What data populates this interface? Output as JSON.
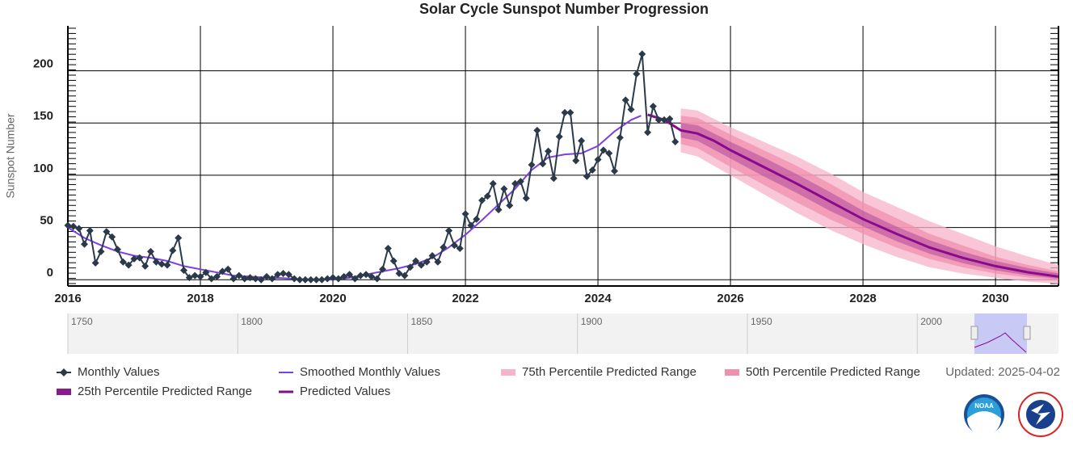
{
  "chart_data": {
    "type": "line",
    "title": "Solar Cycle Sunspot Number Progression",
    "y_label": "Sunspot Number",
    "xlim": [
      2016,
      2030.95
    ],
    "xticks": [
      2016,
      2018,
      2020,
      2022,
      2024,
      2026,
      2028,
      2030
    ],
    "ylim": [
      -6,
      243
    ],
    "yticks": [
      0,
      50,
      100,
      150,
      200
    ],
    "grid": true,
    "legend": "bottom",
    "updated": "Updated: 2025-04-02",
    "navigator_labels": [
      "1750",
      "1800",
      "1850",
      "1900",
      "1950",
      "2000"
    ],
    "series": [
      {
        "name": "Monthly Values",
        "kind": "markers",
        "color": "#2b3a4a",
        "x": [
          2016,
          2016.083,
          2016.167,
          2016.25,
          2016.333,
          2016.417,
          2016.5,
          2016.583,
          2016.667,
          2016.75,
          2016.833,
          2016.917,
          2017,
          2017.083,
          2017.167,
          2017.25,
          2017.333,
          2017.417,
          2017.5,
          2017.583,
          2017.667,
          2017.75,
          2017.833,
          2017.917,
          2018,
          2018.083,
          2018.167,
          2018.25,
          2018.333,
          2018.417,
          2018.5,
          2018.583,
          2018.667,
          2018.75,
          2018.833,
          2018.917,
          2019,
          2019.083,
          2019.167,
          2019.25,
          2019.333,
          2019.417,
          2019.5,
          2019.583,
          2019.667,
          2019.75,
          2019.833,
          2019.917,
          2020,
          2020.083,
          2020.167,
          2020.25,
          2020.333,
          2020.417,
          2020.5,
          2020.583,
          2020.667,
          2020.75,
          2020.833,
          2020.917,
          2021,
          2021.083,
          2021.167,
          2021.25,
          2021.333,
          2021.417,
          2021.5,
          2021.583,
          2021.667,
          2021.75,
          2021.833,
          2021.917,
          2022,
          2022.083,
          2022.167,
          2022.25,
          2022.333,
          2022.417,
          2022.5,
          2022.583,
          2022.667,
          2022.75,
          2022.833,
          2022.917,
          2023,
          2023.083,
          2023.167,
          2023.25,
          2023.333,
          2023.417,
          2023.5,
          2023.583,
          2023.667,
          2023.75,
          2023.833,
          2023.917,
          2024,
          2024.083,
          2024.167,
          2024.25,
          2024.333,
          2024.417,
          2024.5,
          2024.583,
          2024.667,
          2024.75,
          2024.833,
          2024.917,
          2025,
          2025.083,
          2025.167
        ],
        "values": [
          52,
          51,
          49,
          34,
          47,
          16,
          27,
          46,
          41,
          29,
          17,
          14,
          20,
          21,
          13,
          27,
          17,
          15,
          14,
          28,
          40,
          9,
          2,
          4,
          3,
          7,
          1,
          3,
          8,
          10,
          1,
          4,
          1,
          2,
          1,
          0,
          3,
          1,
          5,
          6,
          5,
          1,
          0,
          0,
          0,
          0,
          0,
          1,
          2,
          1,
          3,
          5,
          1,
          4,
          5,
          3,
          1,
          10,
          30,
          18,
          6,
          4,
          12,
          18,
          14,
          17,
          23,
          17,
          31,
          47,
          33,
          30,
          63,
          52,
          58,
          76,
          80,
          92,
          67,
          87,
          71,
          92,
          94,
          78,
          110,
          143,
          111,
          123,
          97,
          137,
          160,
          160,
          114,
          133,
          99,
          105,
          115,
          124,
          121,
          104,
          136,
          172,
          163,
          197,
          216,
          141,
          166,
          153,
          153,
          154,
          132
        ]
      },
      {
        "name": "Smoothed Monthly Values",
        "kind": "line",
        "color": "#7b3fe4",
        "x": [
          2016,
          2016.25,
          2016.5,
          2016.75,
          2017,
          2017.25,
          2017.5,
          2017.75,
          2018,
          2018.25,
          2018.5,
          2018.75,
          2019,
          2019.25,
          2019.5,
          2019.75,
          2020,
          2020.25,
          2020.5,
          2020.75,
          2021,
          2021.25,
          2021.5,
          2021.75,
          2022,
          2022.25,
          2022.5,
          2022.75,
          2023,
          2023.25,
          2023.5,
          2023.75,
          2024,
          2024.25,
          2024.5,
          2024.65
        ],
        "values": [
          50,
          40,
          33,
          27,
          23,
          21,
          18,
          13,
          10,
          7,
          4,
          3,
          2,
          1.5,
          0.5,
          0.5,
          0,
          2,
          5,
          8,
          11,
          15,
          21,
          31,
          43,
          57,
          72,
          87,
          105,
          117,
          120,
          121,
          128,
          142,
          153,
          157
        ]
      },
      {
        "name": "75th Percentile Predicted Range",
        "kind": "band",
        "color": "#f7b3cb",
        "x": [
          2025.25,
          2025.5,
          2026,
          2026.5,
          2027,
          2027.5,
          2028,
          2028.5,
          2029,
          2029.5,
          2030,
          2030.5,
          2030.95
        ],
        "low": [
          122,
          118,
          100,
          82,
          64,
          48,
          34,
          22,
          12,
          6,
          2,
          -2,
          -4
        ],
        "high": [
          164,
          162,
          146,
          132,
          118,
          102,
          84,
          70,
          56,
          44,
          32,
          22,
          14
        ]
      },
      {
        "name": "50th Percentile Predicted Range",
        "kind": "band",
        "color": "#f08fae",
        "x": [
          2025.25,
          2025.5,
          2026,
          2026.5,
          2027,
          2027.5,
          2028,
          2028.5,
          2029,
          2029.5,
          2030,
          2030.5,
          2030.95
        ],
        "low": [
          130,
          126,
          108,
          91,
          74,
          58,
          44,
          31,
          20,
          12,
          6,
          2,
          0
        ],
        "high": [
          157,
          155,
          139,
          124,
          109,
          92,
          74,
          59,
          44,
          33,
          22,
          14,
          8
        ]
      },
      {
        "name": "25th Percentile Predicted Range",
        "kind": "band",
        "color": "#8b1a8b",
        "x": [
          2025.25,
          2025.5,
          2026,
          2026.5,
          2027,
          2027.5,
          2028,
          2028.5,
          2029,
          2029.5,
          2030,
          2030.5,
          2030.95
        ],
        "low": [
          136,
          133,
          116,
          99,
          83,
          66,
          51,
          37,
          25,
          16,
          9,
          4,
          1
        ],
        "high": [
          150,
          148,
          132,
          117,
          101,
          84,
          66,
          51,
          38,
          27,
          18,
          11,
          6
        ]
      },
      {
        "name": "Predicted Values",
        "kind": "line",
        "color": "#8b0a8b",
        "x": [
          2024.75,
          2025,
          2025.25,
          2025.5,
          2025.75,
          2026,
          2026.5,
          2027,
          2027.5,
          2028,
          2028.5,
          2029,
          2029.5,
          2030,
          2030.5,
          2030.95
        ],
        "values": [
          158,
          153,
          143,
          140,
          133,
          124,
          108,
          92,
          75,
          58,
          44,
          31,
          21,
          13,
          7,
          3
        ]
      }
    ]
  }
}
